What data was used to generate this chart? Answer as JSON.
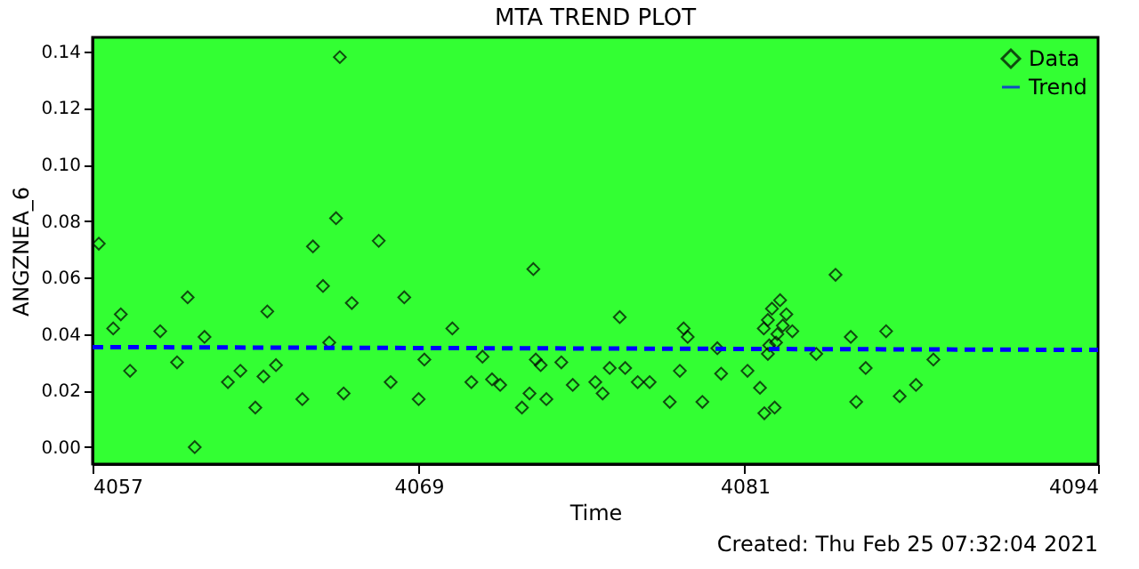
{
  "chart_data": {
    "type": "scatter",
    "title": "MTA TREND PLOT",
    "xlabel": "Time",
    "ylabel": "ANGZNEA_6",
    "annotations": [
      "Created: Thu Feb 25 07:32:04 2021"
    ],
    "xlim": [
      4057,
      4094
    ],
    "xticks": [
      4057,
      4069,
      4081,
      4094
    ],
    "ylim": [
      -0.006,
      0.145
    ],
    "yticks": [
      {
        "value": 0,
        "label": "0.00"
      },
      {
        "value": 0.02,
        "label": "0.02"
      },
      {
        "value": 0.04,
        "label": "0.04"
      },
      {
        "value": 0.06,
        "label": "0.06"
      },
      {
        "value": 0.08,
        "label": "0.08"
      },
      {
        "value": 0.1,
        "label": "0.10"
      },
      {
        "value": 0.12,
        "label": "0.12"
      },
      {
        "value": 0.14,
        "label": "0.14"
      }
    ],
    "grid": false,
    "legend": "top right",
    "series": [
      {
        "name": "Data",
        "marker": "diamond",
        "color": "#000000",
        "x": [
          4057.23,
          4057.76,
          4058.04,
          4058.38,
          4059.49,
          4060.11,
          4060.5,
          4060.76,
          4061.12,
          4061.98,
          4062.44,
          4062.99,
          4063.29,
          4063.43,
          4063.75,
          4064.72,
          4065.11,
          4065.48,
          4065.71,
          4065.96,
          4066.1,
          4066.24,
          4066.54,
          4067.53,
          4067.97,
          4068.47,
          4069.0,
          4069.21,
          4070.24,
          4070.94,
          4071.35,
          4071.7,
          4072.0,
          4072.8,
          4073.08,
          4073.22,
          4073.31,
          4073.49,
          4073.7,
          4074.25,
          4074.67,
          4075.5,
          4075.77,
          4076.03,
          4076.4,
          4076.6,
          4077.06,
          4077.5,
          4078.24,
          4078.61,
          4078.75,
          4078.9,
          4079.44,
          4079.99,
          4080.13,
          4081.1,
          4081.56,
          4081.72,
          4082.1,
          4082.3,
          4082.0,
          4081.7,
          4081.85,
          4082.2,
          4081.9,
          4082.15,
          4081.85,
          4082.4,
          4082.53,
          4082.75,
          4083.63,
          4084.34,
          4084.9,
          4085.1,
          4085.45,
          4086.2,
          4086.7,
          4087.3,
          4087.94
        ],
        "values": [
          0.072,
          0.042,
          0.047,
          0.027,
          0.041,
          0.03,
          0.053,
          0.0,
          0.039,
          0.023,
          0.027,
          0.014,
          0.025,
          0.048,
          0.029,
          0.017,
          0.071,
          0.057,
          0.037,
          0.081,
          0.138,
          0.019,
          0.051,
          0.073,
          0.023,
          0.053,
          0.017,
          0.031,
          0.042,
          0.023,
          0.032,
          0.024,
          0.022,
          0.014,
          0.019,
          0.063,
          0.031,
          0.029,
          0.017,
          0.03,
          0.022,
          0.023,
          0.019,
          0.028,
          0.046,
          0.028,
          0.023,
          0.023,
          0.016,
          0.027,
          0.042,
          0.039,
          0.016,
          0.035,
          0.026,
          0.027,
          0.021,
          0.012,
          0.014,
          0.052,
          0.049,
          0.042,
          0.045,
          0.04,
          0.036,
          0.037,
          0.033,
          0.043,
          0.047,
          0.041,
          0.033,
          0.061,
          0.039,
          0.016,
          0.028,
          0.041,
          0.018,
          0.022,
          0.031
        ]
      },
      {
        "name": "Trend",
        "type": "line",
        "line_style": "dashed",
        "color": "#0000ff",
        "x": [
          4057,
          4094
        ],
        "values": [
          0.0354,
          0.0344
        ]
      }
    ]
  }
}
